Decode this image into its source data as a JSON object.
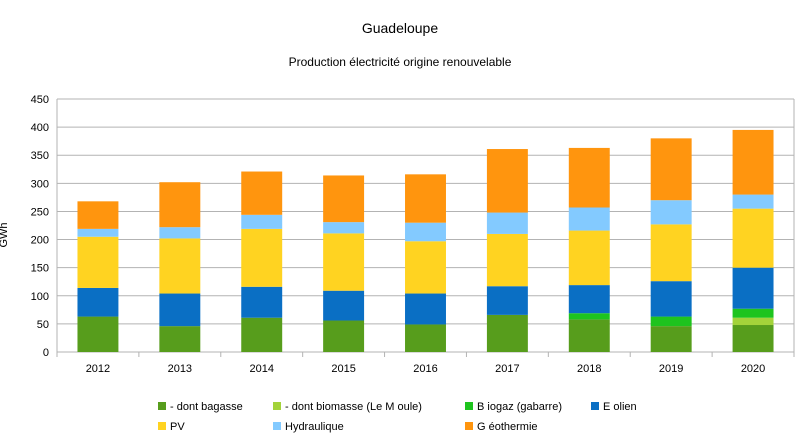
{
  "chart_data": {
    "type": "bar",
    "stacked": true,
    "title": "Guadeloupe",
    "subtitle": "Production électricité origine renouvelable",
    "ylabel": "GWh",
    "ylim": [
      0,
      450
    ],
    "yticks": [
      0,
      50,
      100,
      150,
      200,
      250,
      300,
      350,
      400,
      450
    ],
    "grid": true,
    "legend": "bottom",
    "categories": [
      "2012",
      "2013",
      "2014",
      "2015",
      "2016",
      "2017",
      "2018",
      "2019",
      "2020"
    ],
    "series": [
      {
        "name": "- dont bagasse",
        "color": "#579d1c",
        "values": [
          63,
          46,
          61,
          56,
          49,
          66,
          58,
          46,
          48
        ]
      },
      {
        "name": "- dont biomasse (Le M oule)",
        "color": "#a3d33a",
        "values": [
          0,
          0,
          0,
          0,
          0,
          0,
          0,
          0,
          13
        ]
      },
      {
        "name": "B iogaz (gabarre)",
        "color": "#1ec41e",
        "values": [
          0,
          0,
          0,
          0,
          0,
          0,
          11,
          17,
          16
        ]
      },
      {
        "name": "E olien",
        "color": "#0a6fc4",
        "values": [
          51,
          58,
          55,
          53,
          55,
          51,
          50,
          63,
          73
        ]
      },
      {
        "name": "PV",
        "color": "#ffd321",
        "values": [
          91,
          98,
          103,
          102,
          93,
          93,
          97,
          101,
          105
        ]
      },
      {
        "name": "Hydraulique",
        "color": "#83caff",
        "values": [
          14,
          20,
          25,
          20,
          33,
          38,
          41,
          43,
          25
        ]
      },
      {
        "name": "G éothermie",
        "color": "#ff950e",
        "values": [
          49,
          80,
          77,
          83,
          86,
          113,
          106,
          110,
          115
        ]
      }
    ]
  }
}
